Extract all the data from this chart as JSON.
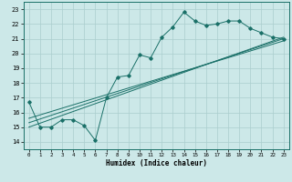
{
  "title": "",
  "xlabel": "Humidex (Indice chaleur)",
  "xlim": [
    -0.5,
    23.5
  ],
  "ylim": [
    13.5,
    23.5
  ],
  "yticks": [
    14,
    15,
    16,
    17,
    18,
    19,
    20,
    21,
    22,
    23
  ],
  "xticks": [
    0,
    1,
    2,
    3,
    4,
    5,
    6,
    7,
    8,
    9,
    10,
    11,
    12,
    13,
    14,
    15,
    16,
    17,
    18,
    19,
    20,
    21,
    22,
    23
  ],
  "bg_color": "#cce8e8",
  "line_color": "#1a7068",
  "grid_color": "#aacece",
  "main_line_x": [
    0,
    1,
    2,
    3,
    4,
    5,
    6,
    7,
    8,
    9,
    10,
    11,
    12,
    13,
    14,
    15,
    16,
    17,
    18,
    19,
    20,
    21,
    22,
    23
  ],
  "main_line_y": [
    16.7,
    15.0,
    15.0,
    15.5,
    15.5,
    15.1,
    14.1,
    17.0,
    18.4,
    18.5,
    19.9,
    19.7,
    21.1,
    21.8,
    22.8,
    22.2,
    21.9,
    22.0,
    22.2,
    22.2,
    21.7,
    21.4,
    21.1,
    21.0
  ],
  "trend_lines": [
    {
      "x": [
        0,
        23
      ],
      "y": [
        15.0,
        21.1
      ]
    },
    {
      "x": [
        0,
        23
      ],
      "y": [
        15.3,
        21.0
      ]
    },
    {
      "x": [
        0,
        23
      ],
      "y": [
        15.6,
        20.85
      ]
    }
  ]
}
